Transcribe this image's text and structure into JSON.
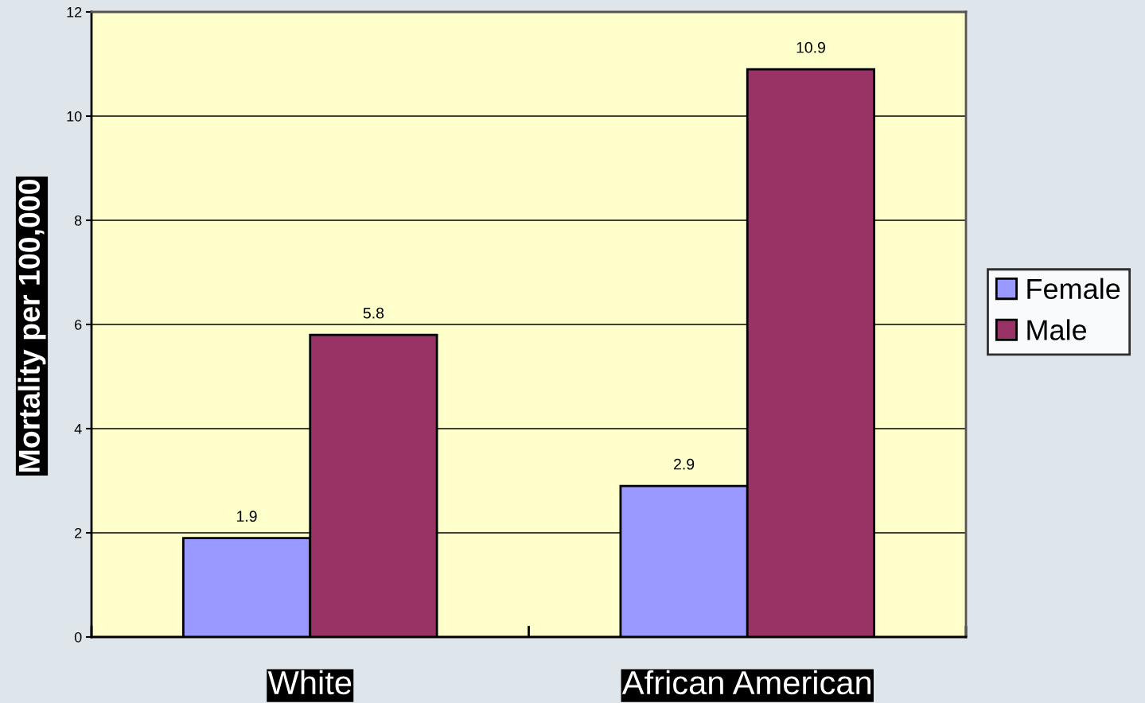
{
  "chart_data": {
    "type": "bar",
    "ylabel": "Mortality per 100,000",
    "categories": [
      "White",
      "African American"
    ],
    "series": [
      {
        "name": "Female",
        "color": "#9999ff",
        "values": [
          1.9,
          2.9
        ]
      },
      {
        "name": "Male",
        "color": "#993366",
        "values": [
          5.8,
          10.9
        ]
      }
    ],
    "ylim": [
      0,
      12
    ],
    "yticks": [
      0,
      2,
      4,
      6,
      8,
      10,
      12
    ],
    "grid": "y",
    "legend": "right",
    "data_labels": true
  }
}
